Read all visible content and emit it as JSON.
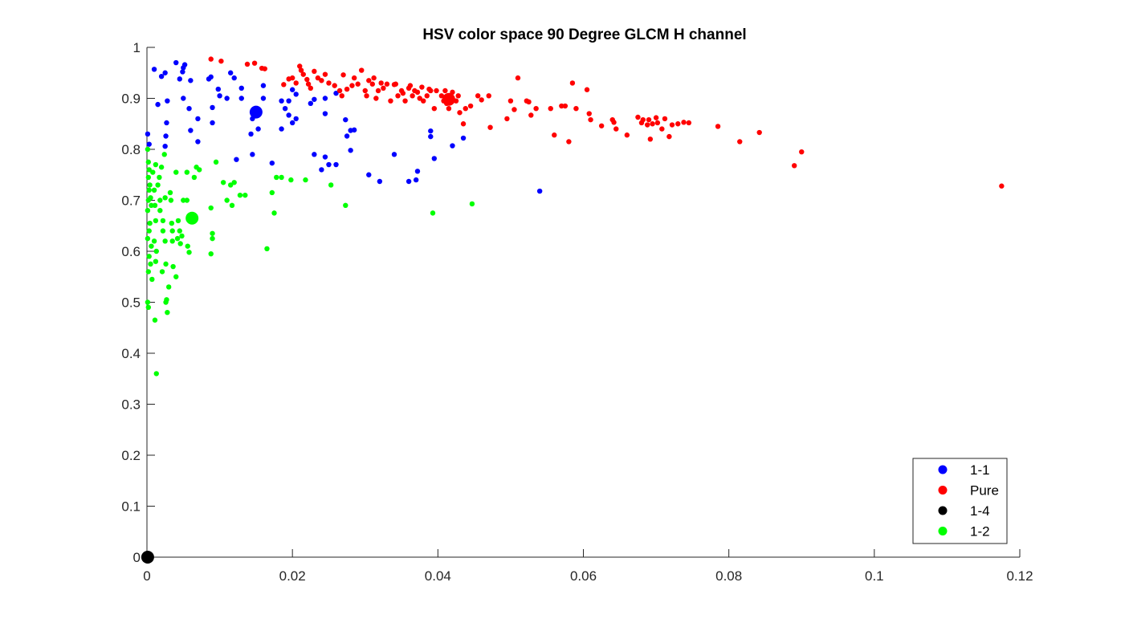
{
  "chart_data": {
    "type": "scatter",
    "title": "HSV color space 90 Degree GLCM H channel",
    "xlabel": "",
    "ylabel": "",
    "xlim": [
      0,
      0.12
    ],
    "ylim": [
      0,
      1
    ],
    "x_ticks": [
      0,
      0.02,
      0.04,
      0.06,
      0.08,
      0.1,
      0.12
    ],
    "x_tick_labels": [
      "0",
      "0.02",
      "0.04",
      "0.06",
      "0.08",
      "0.1",
      "0.12"
    ],
    "y_ticks": [
      0,
      0.1,
      0.2,
      0.3,
      0.4,
      0.5,
      0.6,
      0.7,
      0.8,
      0.9,
      1
    ],
    "y_tick_labels": [
      "0",
      "0.1",
      "0.2",
      "0.3",
      "0.4",
      "0.5",
      "0.6",
      "0.7",
      "0.8",
      "0.9",
      "1"
    ],
    "grid": false,
    "legend_position": "bottom-right",
    "legend": [
      "1-1",
      "Pure",
      "1-4",
      "1-2"
    ],
    "series": [
      {
        "name": "1-1",
        "color": "#0000ff",
        "centroid": [
          0.015,
          0.873
        ],
        "points": [
          [
            0.0001,
            0.83
          ],
          [
            0.0003,
            0.81
          ],
          [
            0.001,
            0.957
          ],
          [
            0.0015,
            0.888
          ],
          [
            0.002,
            0.943
          ],
          [
            0.0025,
            0.95
          ],
          [
            0.0028,
            0.895
          ],
          [
            0.0027,
            0.852
          ],
          [
            0.0026,
            0.826
          ],
          [
            0.0025,
            0.806
          ],
          [
            0.004,
            0.97
          ],
          [
            0.0045,
            0.938
          ],
          [
            0.005,
            0.96
          ],
          [
            0.0052,
            0.966
          ],
          [
            0.0049,
            0.952
          ],
          [
            0.005,
            0.9
          ],
          [
            0.006,
            0.935
          ],
          [
            0.0058,
            0.88
          ],
          [
            0.006,
            0.837
          ],
          [
            0.007,
            0.86
          ],
          [
            0.007,
            0.815
          ],
          [
            0.0085,
            0.938
          ],
          [
            0.0088,
            0.942
          ],
          [
            0.009,
            0.882
          ],
          [
            0.009,
            0.852
          ],
          [
            0.0098,
            0.918
          ],
          [
            0.01,
            0.905
          ],
          [
            0.011,
            0.9
          ],
          [
            0.0115,
            0.95
          ],
          [
            0.012,
            0.94
          ],
          [
            0.0123,
            0.78
          ],
          [
            0.013,
            0.9
          ],
          [
            0.013,
            0.92
          ],
          [
            0.0143,
            0.83
          ],
          [
            0.0145,
            0.79
          ],
          [
            0.0145,
            0.86
          ],
          [
            0.0153,
            0.84
          ],
          [
            0.0155,
            0.873
          ],
          [
            0.016,
            0.925
          ],
          [
            0.016,
            0.9
          ],
          [
            0.0172,
            0.773
          ],
          [
            0.0185,
            0.84
          ],
          [
            0.0185,
            0.895
          ],
          [
            0.019,
            0.88
          ],
          [
            0.0195,
            0.867
          ],
          [
            0.0195,
            0.895
          ],
          [
            0.02,
            0.917
          ],
          [
            0.02,
            0.852
          ],
          [
            0.0205,
            0.86
          ],
          [
            0.0205,
            0.908
          ],
          [
            0.0225,
            0.89
          ],
          [
            0.023,
            0.898
          ],
          [
            0.023,
            0.79
          ],
          [
            0.024,
            0.76
          ],
          [
            0.0245,
            0.87
          ],
          [
            0.0245,
            0.9
          ],
          [
            0.0245,
            0.785
          ],
          [
            0.025,
            0.77
          ],
          [
            0.026,
            0.91
          ],
          [
            0.026,
            0.77
          ],
          [
            0.0273,
            0.858
          ],
          [
            0.0275,
            0.826
          ],
          [
            0.028,
            0.837
          ],
          [
            0.028,
            0.798
          ],
          [
            0.0285,
            0.838
          ],
          [
            0.0305,
            0.75
          ],
          [
            0.032,
            0.737
          ],
          [
            0.034,
            0.79
          ],
          [
            0.036,
            0.737
          ],
          [
            0.037,
            0.74
          ],
          [
            0.0372,
            0.757
          ],
          [
            0.039,
            0.836
          ],
          [
            0.039,
            0.825
          ],
          [
            0.0395,
            0.782
          ],
          [
            0.042,
            0.807
          ],
          [
            0.0435,
            0.822
          ],
          [
            0.054,
            0.718
          ]
        ]
      },
      {
        "name": "Pure",
        "color": "#ff0000",
        "centroid": [
          0.0415,
          0.898
        ],
        "points": [
          [
            0.0088,
            0.977
          ],
          [
            0.0102,
            0.973
          ],
          [
            0.0138,
            0.967
          ],
          [
            0.0148,
            0.969
          ],
          [
            0.0158,
            0.959
          ],
          [
            0.0162,
            0.958
          ],
          [
            0.0188,
            0.927
          ],
          [
            0.0195,
            0.938
          ],
          [
            0.02,
            0.94
          ],
          [
            0.0205,
            0.93
          ],
          [
            0.021,
            0.963
          ],
          [
            0.0212,
            0.955
          ],
          [
            0.0215,
            0.947
          ],
          [
            0.022,
            0.937
          ],
          [
            0.0222,
            0.928
          ],
          [
            0.0225,
            0.92
          ],
          [
            0.023,
            0.953
          ],
          [
            0.0235,
            0.94
          ],
          [
            0.024,
            0.935
          ],
          [
            0.0245,
            0.947
          ],
          [
            0.025,
            0.93
          ],
          [
            0.0258,
            0.925
          ],
          [
            0.0265,
            0.915
          ],
          [
            0.0268,
            0.905
          ],
          [
            0.027,
            0.946
          ],
          [
            0.0275,
            0.918
          ],
          [
            0.0282,
            0.925
          ],
          [
            0.0285,
            0.94
          ],
          [
            0.029,
            0.928
          ],
          [
            0.0295,
            0.955
          ],
          [
            0.03,
            0.915
          ],
          [
            0.0302,
            0.905
          ],
          [
            0.0305,
            0.935
          ],
          [
            0.031,
            0.928
          ],
          [
            0.0312,
            0.94
          ],
          [
            0.0315,
            0.9
          ],
          [
            0.0318,
            0.915
          ],
          [
            0.0322,
            0.93
          ],
          [
            0.0325,
            0.92
          ],
          [
            0.033,
            0.928
          ],
          [
            0.0335,
            0.895
          ],
          [
            0.034,
            0.927
          ],
          [
            0.0342,
            0.928
          ],
          [
            0.0345,
            0.905
          ],
          [
            0.035,
            0.915
          ],
          [
            0.0352,
            0.91
          ],
          [
            0.0355,
            0.895
          ],
          [
            0.036,
            0.92
          ],
          [
            0.0362,
            0.925
          ],
          [
            0.0365,
            0.905
          ],
          [
            0.0368,
            0.915
          ],
          [
            0.0372,
            0.912
          ],
          [
            0.0375,
            0.9
          ],
          [
            0.0378,
            0.922
          ],
          [
            0.038,
            0.895
          ],
          [
            0.0385,
            0.905
          ],
          [
            0.0388,
            0.918
          ],
          [
            0.039,
            0.915
          ],
          [
            0.0395,
            0.88
          ],
          [
            0.0398,
            0.915
          ],
          [
            0.0405,
            0.905
          ],
          [
            0.0408,
            0.895
          ],
          [
            0.041,
            0.915
          ],
          [
            0.0412,
            0.89
          ],
          [
            0.0415,
            0.88
          ],
          [
            0.042,
            0.912
          ],
          [
            0.0425,
            0.895
          ],
          [
            0.0428,
            0.905
          ],
          [
            0.043,
            0.872
          ],
          [
            0.0435,
            0.85
          ],
          [
            0.0438,
            0.88
          ],
          [
            0.0445,
            0.885
          ],
          [
            0.0455,
            0.905
          ],
          [
            0.046,
            0.897
          ],
          [
            0.047,
            0.905
          ],
          [
            0.0472,
            0.843
          ],
          [
            0.0495,
            0.86
          ],
          [
            0.05,
            0.895
          ],
          [
            0.0505,
            0.878
          ],
          [
            0.051,
            0.94
          ],
          [
            0.0522,
            0.895
          ],
          [
            0.0525,
            0.893
          ],
          [
            0.0528,
            0.867
          ],
          [
            0.0535,
            0.88
          ],
          [
            0.0555,
            0.88
          ],
          [
            0.056,
            0.828
          ],
          [
            0.057,
            0.885
          ],
          [
            0.0575,
            0.885
          ],
          [
            0.058,
            0.815
          ],
          [
            0.0585,
            0.93
          ],
          [
            0.059,
            0.88
          ],
          [
            0.0605,
            0.917
          ],
          [
            0.0608,
            0.87
          ],
          [
            0.061,
            0.858
          ],
          [
            0.0625,
            0.846
          ],
          [
            0.064,
            0.858
          ],
          [
            0.0642,
            0.853
          ],
          [
            0.0645,
            0.84
          ],
          [
            0.066,
            0.828
          ],
          [
            0.0675,
            0.863
          ],
          [
            0.068,
            0.852
          ],
          [
            0.0682,
            0.858
          ],
          [
            0.0688,
            0.848
          ],
          [
            0.069,
            0.858
          ],
          [
            0.0692,
            0.82
          ],
          [
            0.0695,
            0.85
          ],
          [
            0.07,
            0.862
          ],
          [
            0.0702,
            0.852
          ],
          [
            0.0708,
            0.84
          ],
          [
            0.0712,
            0.86
          ],
          [
            0.0718,
            0.825
          ],
          [
            0.0722,
            0.848
          ],
          [
            0.073,
            0.85
          ],
          [
            0.0738,
            0.853
          ],
          [
            0.0745,
            0.852
          ],
          [
            0.0785,
            0.845
          ],
          [
            0.0815,
            0.815
          ],
          [
            0.0842,
            0.833
          ],
          [
            0.089,
            0.768
          ],
          [
            0.09,
            0.795
          ],
          [
            0.1175,
            0.728
          ]
        ]
      },
      {
        "name": "1-4",
        "color": "#000000",
        "centroid": [
          0.0001,
          0.0
        ],
        "points": [
          [
            0.0001,
            0.0
          ]
        ]
      },
      {
        "name": "1-2",
        "color": "#00ff00",
        "centroid": [
          0.0062,
          0.665
        ],
        "points": [
          [
            0.0001,
            0.8
          ],
          [
            0.0002,
            0.775
          ],
          [
            0.0003,
            0.76
          ],
          [
            0.0002,
            0.745
          ],
          [
            0.0004,
            0.73
          ],
          [
            0.0003,
            0.72
          ],
          [
            0.0005,
            0.705
          ],
          [
            0.0002,
            0.7
          ],
          [
            0.0006,
            0.69
          ],
          [
            0.0001,
            0.68
          ],
          [
            0.0004,
            0.655
          ],
          [
            0.0003,
            0.64
          ],
          [
            0.0001,
            0.625
          ],
          [
            0.0006,
            0.61
          ],
          [
            0.0003,
            0.59
          ],
          [
            0.0005,
            0.575
          ],
          [
            0.0002,
            0.56
          ],
          [
            0.0007,
            0.545
          ],
          [
            0.0001,
            0.5
          ],
          [
            0.0002,
            0.49
          ],
          [
            0.0008,
            0.755
          ],
          [
            0.001,
            0.72
          ],
          [
            0.0012,
            0.77
          ],
          [
            0.0011,
            0.69
          ],
          [
            0.0012,
            0.66
          ],
          [
            0.001,
            0.62
          ],
          [
            0.0013,
            0.6
          ],
          [
            0.0012,
            0.58
          ],
          [
            0.0011,
            0.465
          ],
          [
            0.0013,
            0.36
          ],
          [
            0.0015,
            0.73
          ],
          [
            0.0017,
            0.745
          ],
          [
            0.0018,
            0.7
          ],
          [
            0.0018,
            0.68
          ],
          [
            0.002,
            0.765
          ],
          [
            0.0022,
            0.66
          ],
          [
            0.0022,
            0.64
          ],
          [
            0.0021,
            0.56
          ],
          [
            0.0024,
            0.79
          ],
          [
            0.0025,
            0.705
          ],
          [
            0.0025,
            0.62
          ],
          [
            0.0026,
            0.575
          ],
          [
            0.0026,
            0.5
          ],
          [
            0.0028,
            0.48
          ],
          [
            0.0027,
            0.505
          ],
          [
            0.003,
            0.53
          ],
          [
            0.0032,
            0.715
          ],
          [
            0.0033,
            0.7
          ],
          [
            0.0034,
            0.655
          ],
          [
            0.0035,
            0.64
          ],
          [
            0.0035,
            0.62
          ],
          [
            0.0036,
            0.57
          ],
          [
            0.004,
            0.755
          ],
          [
            0.004,
            0.55
          ],
          [
            0.0042,
            0.625
          ],
          [
            0.0043,
            0.66
          ],
          [
            0.0045,
            0.64
          ],
          [
            0.0046,
            0.615
          ],
          [
            0.0048,
            0.63
          ],
          [
            0.005,
            0.7
          ],
          [
            0.0055,
            0.755
          ],
          [
            0.0055,
            0.7
          ],
          [
            0.0056,
            0.61
          ],
          [
            0.0058,
            0.598
          ],
          [
            0.0065,
            0.745
          ],
          [
            0.0068,
            0.765
          ],
          [
            0.0072,
            0.76
          ],
          [
            0.0088,
            0.685
          ],
          [
            0.0088,
            0.595
          ],
          [
            0.009,
            0.635
          ],
          [
            0.009,
            0.625
          ],
          [
            0.0095,
            0.775
          ],
          [
            0.0105,
            0.735
          ],
          [
            0.011,
            0.7
          ],
          [
            0.0115,
            0.73
          ],
          [
            0.0117,
            0.69
          ],
          [
            0.012,
            0.735
          ],
          [
            0.0128,
            0.71
          ],
          [
            0.0135,
            0.71
          ],
          [
            0.0165,
            0.605
          ],
          [
            0.0172,
            0.715
          ],
          [
            0.0175,
            0.675
          ],
          [
            0.0178,
            0.745
          ],
          [
            0.0185,
            0.745
          ],
          [
            0.0198,
            0.74
          ],
          [
            0.0218,
            0.74
          ],
          [
            0.0253,
            0.73
          ],
          [
            0.0273,
            0.69
          ],
          [
            0.0393,
            0.675
          ],
          [
            0.0447,
            0.693
          ]
        ]
      }
    ]
  }
}
